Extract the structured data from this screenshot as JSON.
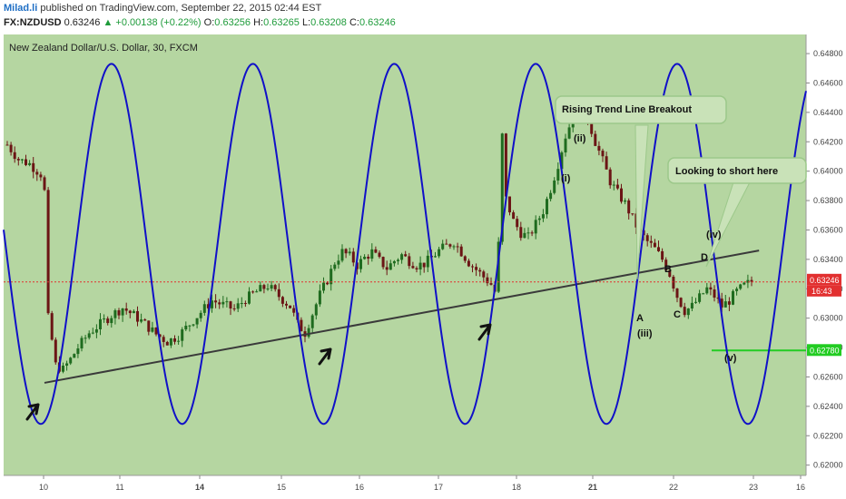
{
  "header": {
    "author": "Milad.li",
    "published_text": "published on TradingView.com, September 22, 2015 02:44 EST",
    "symbol": "FX:NZDUSD",
    "last": "0.63246",
    "change": "+0.00138 (+0.22%)",
    "open_label": "O:",
    "open": "0.63256",
    "high_label": "H:",
    "high": "0.63265",
    "low_label": "L:",
    "low": "0.63208",
    "close_label": "C:",
    "close": "0.63246"
  },
  "colors": {
    "plot_bg": "#b5d6a1",
    "sine": "#1010c8",
    "trendline": "#3a3a3a",
    "bull_candle": "#1f6b1f",
    "bear_candle": "#6b1515",
    "price_line": "#e23030",
    "target_line": "#22cc22",
    "callout_bg": "#c9e2b8",
    "callout_border": "#9cc88a"
  },
  "chart_data": {
    "type": "candlestick",
    "title": "New Zealand Dollar/U.S. Dollar, 30, FXCM",
    "x_tick_labels": [
      "10",
      "11",
      "14",
      "15",
      "16",
      "17",
      "18",
      "21",
      "22",
      "23",
      "16"
    ],
    "y_tick_labels": [
      "0.64800",
      "0.64600",
      "0.64400",
      "0.64200",
      "0.64000",
      "0.63800",
      "0.63600",
      "0.63400",
      "0.63200",
      "0.63000",
      "0.62800",
      "0.62600",
      "0.62400",
      "0.62200",
      "0.62000"
    ],
    "ylim": [
      0.6193,
      0.6493
    ],
    "current_price": {
      "value": 0.63246,
      "label": "0.63246",
      "countdown": "16:43"
    },
    "target_level": {
      "value": 0.6278,
      "label": "0.62780"
    },
    "price_path": [
      [
        0,
        0.6418
      ],
      [
        3,
        0.6408
      ],
      [
        6,
        0.6405
      ],
      [
        9,
        0.6398
      ],
      [
        10,
        0.6386
      ],
      [
        11,
        0.63
      ],
      [
        12,
        0.6285
      ],
      [
        13,
        0.6268
      ],
      [
        15,
        0.6265
      ],
      [
        17,
        0.6272
      ],
      [
        19,
        0.628
      ],
      [
        22,
        0.629
      ],
      [
        25,
        0.6296
      ],
      [
        28,
        0.6302
      ],
      [
        31,
        0.6307
      ],
      [
        34,
        0.6302
      ],
      [
        37,
        0.6296
      ],
      [
        40,
        0.6289
      ],
      [
        43,
        0.6284
      ],
      [
        46,
        0.6288
      ],
      [
        49,
        0.6296
      ],
      [
        52,
        0.6304
      ],
      [
        55,
        0.6312
      ],
      [
        58,
        0.6309
      ],
      [
        61,
        0.6306
      ],
      [
        64,
        0.6313
      ],
      [
        67,
        0.6318
      ],
      [
        70,
        0.6322
      ],
      [
        73,
        0.6315
      ],
      [
        76,
        0.6308
      ],
      [
        78,
        0.6296
      ],
      [
        80,
        0.629
      ],
      [
        82,
        0.6303
      ],
      [
        84,
        0.6316
      ],
      [
        86,
        0.6326
      ],
      [
        88,
        0.6338
      ],
      [
        90,
        0.6345
      ],
      [
        92,
        0.6342
      ],
      [
        94,
        0.6336
      ],
      [
        96,
        0.6341
      ],
      [
        98,
        0.6345
      ],
      [
        100,
        0.6339
      ],
      [
        102,
        0.6334
      ],
      [
        104,
        0.6339
      ],
      [
        106,
        0.6343
      ],
      [
        108,
        0.6339
      ],
      [
        110,
        0.6336
      ],
      [
        112,
        0.6337
      ],
      [
        114,
        0.6341
      ],
      [
        116,
        0.6346
      ],
      [
        118,
        0.6349
      ],
      [
        120,
        0.6352
      ],
      [
        122,
        0.6345
      ],
      [
        124,
        0.6338
      ],
      [
        126,
        0.6333
      ],
      [
        128,
        0.6328
      ],
      [
        130,
        0.6323
      ],
      [
        131,
        0.6318
      ],
      [
        132,
        0.635
      ],
      [
        133,
        0.6424
      ],
      [
        134,
        0.6381
      ],
      [
        136,
        0.6366
      ],
      [
        138,
        0.6358
      ],
      [
        140,
        0.6355
      ],
      [
        142,
        0.6364
      ],
      [
        144,
        0.6373
      ],
      [
        146,
        0.6388
      ],
      [
        148,
        0.6405
      ],
      [
        150,
        0.6424
      ],
      [
        152,
        0.6437
      ],
      [
        154,
        0.6447
      ],
      [
        156,
        0.6436
      ],
      [
        158,
        0.642
      ],
      [
        160,
        0.6407
      ],
      [
        162,
        0.6393
      ],
      [
        164,
        0.6385
      ],
      [
        166,
        0.6378
      ],
      [
        168,
        0.6368
      ],
      [
        170,
        0.6358
      ],
      [
        172,
        0.6352
      ],
      [
        174,
        0.6347
      ],
      [
        176,
        0.634
      ],
      [
        178,
        0.633
      ],
      [
        180,
        0.6315
      ],
      [
        182,
        0.6305
      ],
      [
        184,
        0.6308
      ],
      [
        186,
        0.6314
      ],
      [
        188,
        0.632
      ],
      [
        190,
        0.6315
      ],
      [
        192,
        0.6308
      ],
      [
        194,
        0.6312
      ],
      [
        196,
        0.6318
      ],
      [
        198,
        0.6322
      ],
      [
        200,
        0.6325
      ]
    ],
    "sine_cycle": {
      "max": 0.6473,
      "min": 0.6228,
      "period_bars": 38,
      "first_trough_bar": 9
    },
    "trendline": {
      "from": [
        10,
        0.6256
      ],
      "to": [
        202,
        0.6346
      ]
    },
    "annotations": {
      "wave_labels": [
        "(ii)",
        "(i)",
        "(iii)",
        "A",
        "B",
        "C",
        "D",
        "(iv)",
        "(v)"
      ],
      "callout_breakout": "Rising Trend Line Breakout",
      "callout_short": "Looking to short here"
    }
  }
}
